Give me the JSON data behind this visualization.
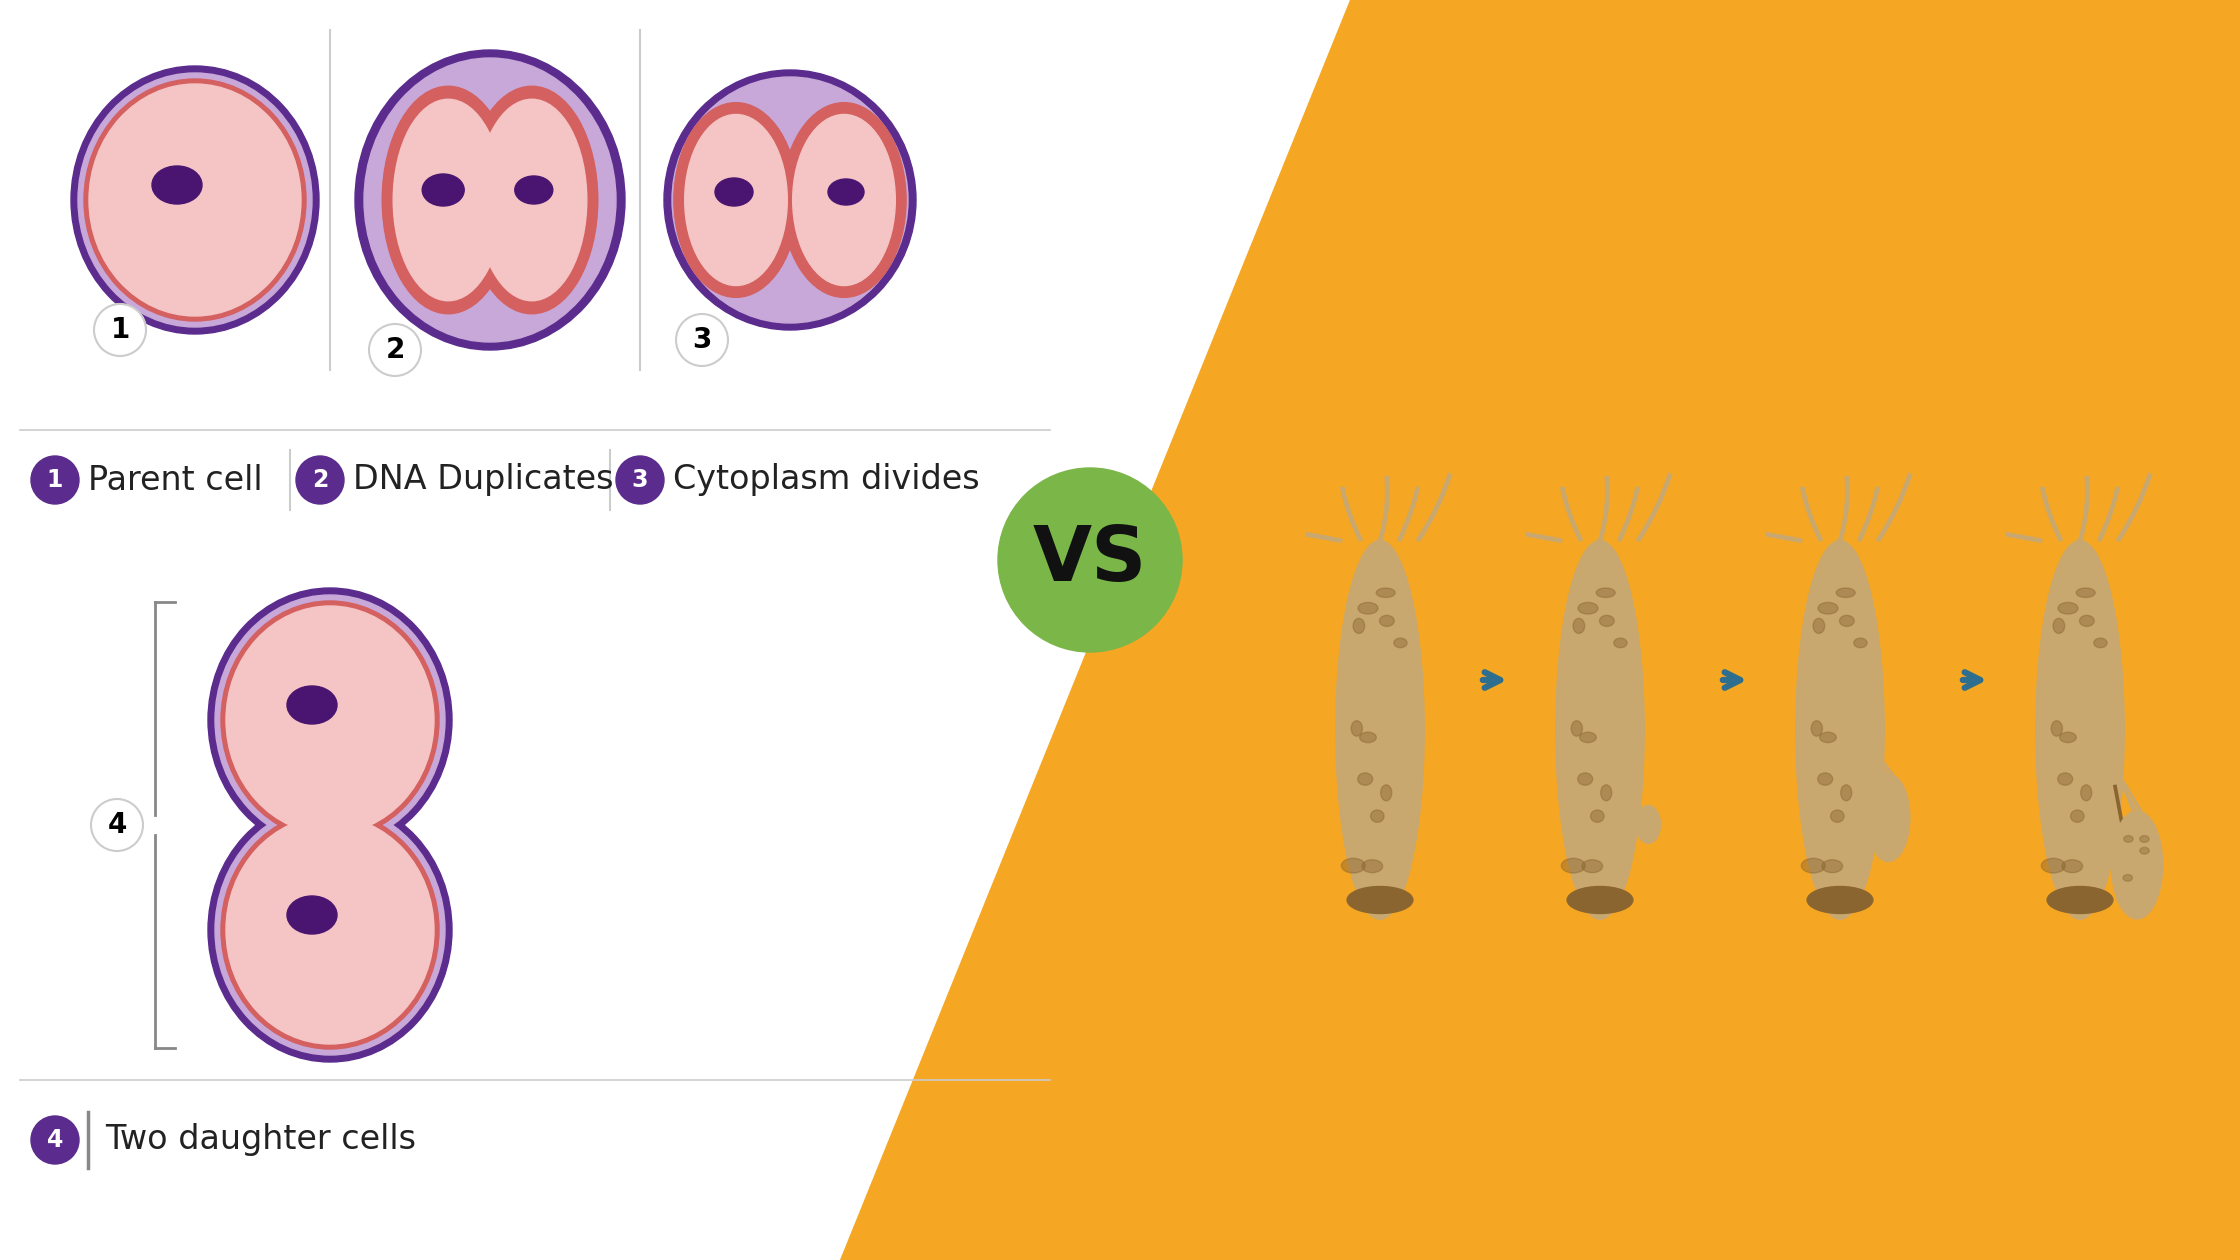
{
  "bg_color": "#ffffff",
  "orange_color": "#F5A623",
  "green_color": "#7AB648",
  "purple_dark": "#5B2C8D",
  "purple_light": "#C8A8D8",
  "pink_light": "#F5C4C4",
  "red_inner": "#D46060",
  "nucleus_color": "#4A1570",
  "label1": "Parent cell",
  "label2": "DNA Duplicates",
  "label3": "Cytoplasm divides",
  "label4": "Two daughter cells",
  "arrow_color": "#2E6E8E",
  "vs_text": "VS",
  "gray_line": "#cccccc",
  "gray_dark": "#888888"
}
